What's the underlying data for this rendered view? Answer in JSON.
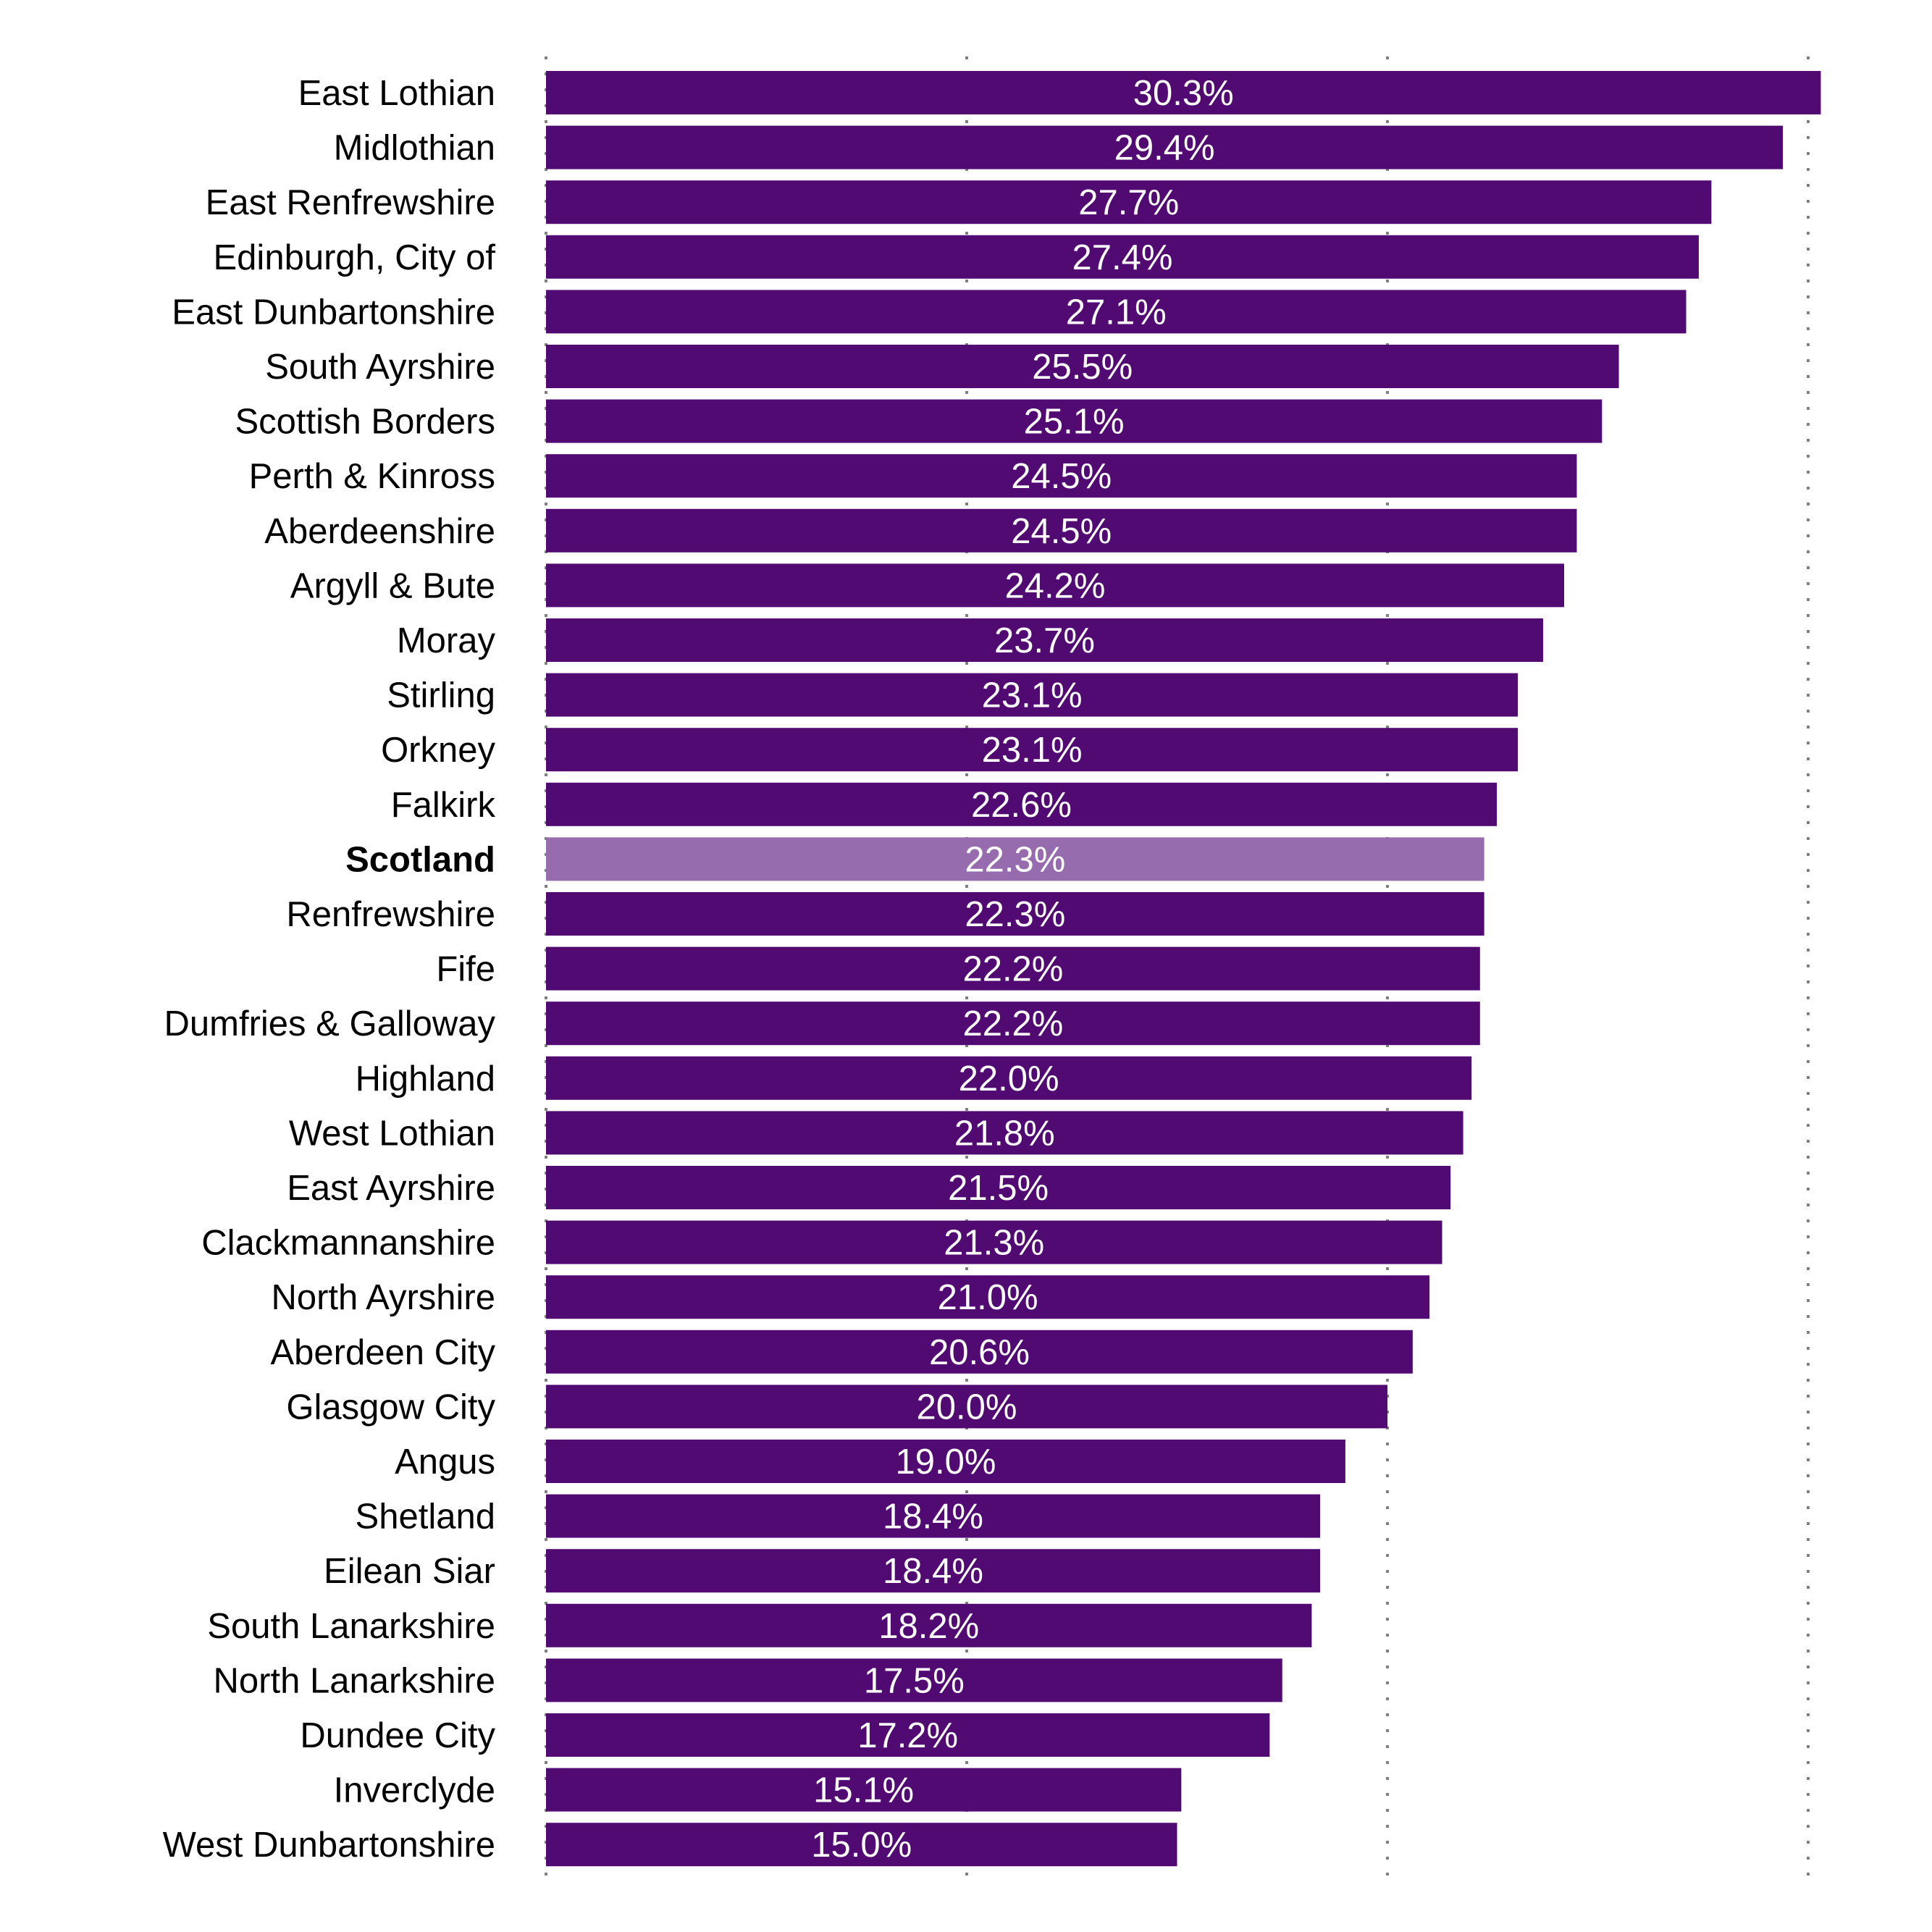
{
  "chart_data": {
    "type": "bar",
    "orientation": "horizontal",
    "title": "",
    "xlabel": "",
    "ylabel": "",
    "xlim": [
      0,
      30
    ],
    "x_gridlines": [
      0,
      10,
      20,
      30
    ],
    "grid": true,
    "value_format": "percent_1dp",
    "colors": {
      "default": "#510A72",
      "highlight": "#966CAE",
      "value_text": "#FFFFFF",
      "label_text": "#000000",
      "grid": "#808080"
    },
    "categories": [
      "East Lothian",
      "Midlothian",
      "East Renfrewshire",
      "Edinburgh, City of",
      "East Dunbartonshire",
      "South Ayrshire",
      "Scottish Borders",
      "Perth & Kinross",
      "Aberdeenshire",
      "Argyll & Bute",
      "Moray",
      "Stirling",
      "Orkney",
      "Falkirk",
      "Scotland",
      "Renfrewshire",
      "Fife",
      "Dumfries & Galloway",
      "Highland",
      "West Lothian",
      "East Ayrshire",
      "Clackmannanshire",
      "North Ayrshire",
      "Aberdeen City",
      "Glasgow City",
      "Angus",
      "Shetland",
      "Eilean Siar",
      "South Lanarkshire",
      "North Lanarkshire",
      "Dundee City",
      "Inverclyde",
      "West Dunbartonshire"
    ],
    "values": [
      30.3,
      29.4,
      27.7,
      27.4,
      27.1,
      25.5,
      25.1,
      24.5,
      24.5,
      24.2,
      23.7,
      23.1,
      23.1,
      22.6,
      22.3,
      22.3,
      22.2,
      22.2,
      22.0,
      21.8,
      21.5,
      21.3,
      21.0,
      20.6,
      20.0,
      19.0,
      18.4,
      18.4,
      18.2,
      17.5,
      17.2,
      15.1,
      15.0
    ],
    "data_labels": [
      "30.3%",
      "29.4%",
      "27.7%",
      "27.4%",
      "27.1%",
      "25.5%",
      "25.1%",
      "24.5%",
      "24.5%",
      "24.2%",
      "23.7%",
      "23.1%",
      "23.1%",
      "22.6%",
      "22.3%",
      "22.3%",
      "22.2%",
      "22.2%",
      "22.0%",
      "21.8%",
      "21.5%",
      "21.3%",
      "21.0%",
      "20.6%",
      "20.0%",
      "19.0%",
      "18.4%",
      "18.4%",
      "18.2%",
      "17.5%",
      "17.2%",
      "15.1%",
      "15.0%"
    ],
    "highlight_category": "Scotland"
  }
}
